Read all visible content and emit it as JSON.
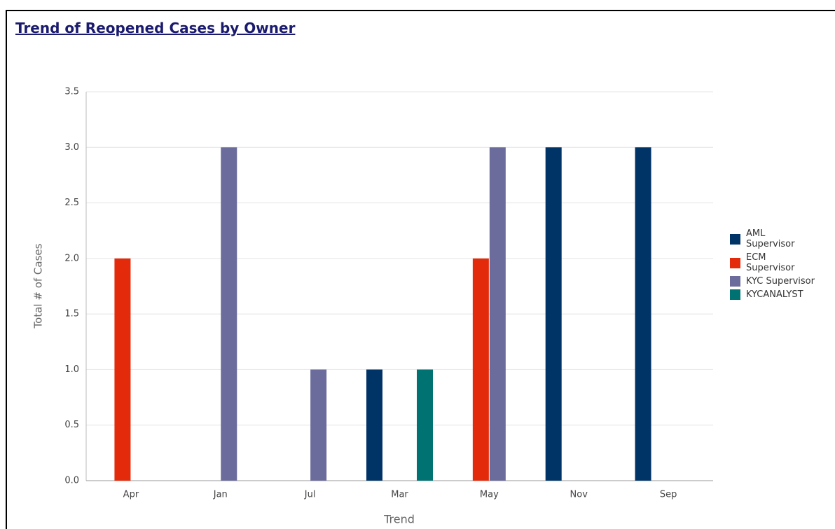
{
  "chart_data": {
    "type": "bar",
    "title": "Trend of Reopened Cases by Owner",
    "x_label": "Trend",
    "y_label": "Total # of Cases",
    "categories": [
      "Apr",
      "Jan",
      "Jul",
      "Mar",
      "May",
      "Nov",
      "Sep"
    ],
    "series": [
      {
        "name": "AML Supervisor",
        "color": "#003366",
        "values": [
          null,
          null,
          null,
          1,
          null,
          3,
          3
        ]
      },
      {
        "name": "ECM Supervisor",
        "color": "#e32a0a",
        "values": [
          2,
          null,
          null,
          null,
          2,
          null,
          null
        ]
      },
      {
        "name": "KYC Supervisor",
        "color": "#6b6b9c",
        "values": [
          null,
          3,
          1,
          null,
          3,
          null,
          null
        ]
      },
      {
        "name": "KYCANALYST",
        "color": "#007272",
        "values": [
          null,
          null,
          null,
          1,
          null,
          null,
          null
        ]
      }
    ],
    "ylim": [
      0,
      3.5
    ],
    "yticks": [
      {
        "value": 0,
        "label": "0.0"
      },
      0.5,
      {
        "value": 1,
        "label": "1.0"
      },
      1.5,
      {
        "value": 2,
        "label": "2.0"
      },
      2.5,
      {
        "value": 3,
        "label": "3.0"
      },
      3.5
    ],
    "grid": true
  }
}
